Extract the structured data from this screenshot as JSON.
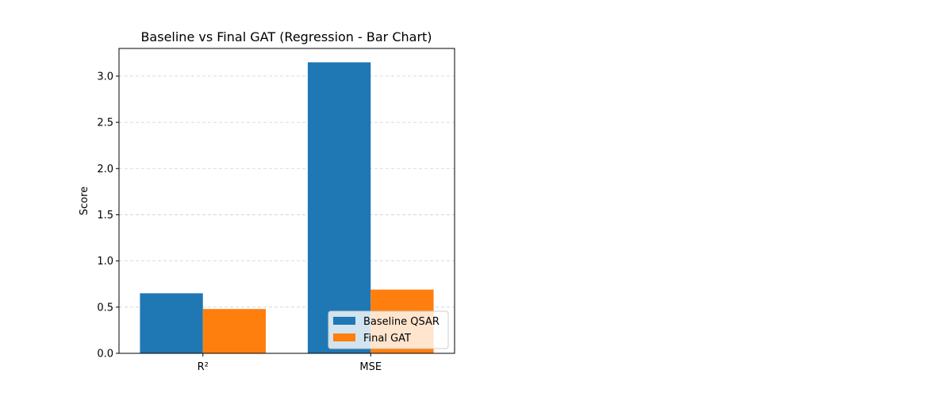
{
  "chart_data": {
    "type": "bar",
    "title": "Baseline vs Final GAT (Regression - Bar Chart)",
    "xlabel": "",
    "ylabel": "Score",
    "categories": [
      "R²",
      "MSE"
    ],
    "series": [
      {
        "name": "Baseline QSAR",
        "color": "#1f77b4",
        "values": [
          0.65,
          3.15
        ]
      },
      {
        "name": "Final GAT",
        "color": "#ff7f0e",
        "values": [
          0.48,
          0.69
        ]
      }
    ],
    "ylim": [
      0,
      3.3
    ],
    "yticks": [
      0.0,
      0.5,
      1.0,
      1.5,
      2.0,
      2.5,
      3.0
    ],
    "ytick_labels": [
      "0.0",
      "0.5",
      "1.0",
      "1.5",
      "2.0",
      "2.5",
      "3.0"
    ],
    "grid": "y-dashed",
    "legend_position": "lower-right"
  }
}
